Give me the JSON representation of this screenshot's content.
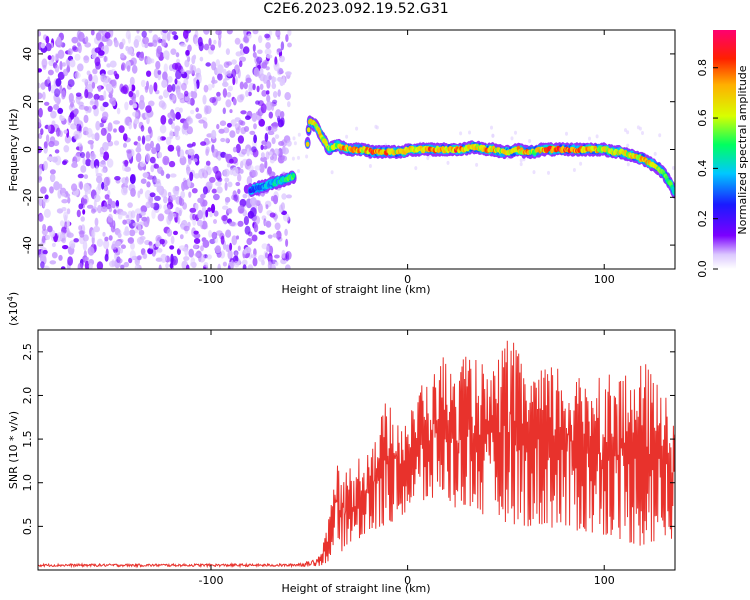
{
  "title": "C2E6.2023.092.19.52.G31",
  "colorbar": {
    "label": "Normalized spectral amplitude",
    "ticks": [
      "0.0",
      "0.2",
      "0.4",
      "0.6",
      "0.8"
    ],
    "tick_values": [
      0.0,
      0.2,
      0.4,
      0.6,
      0.8
    ],
    "colors": [
      "#ffffff",
      "#dcc8ff",
      "#7b00ff",
      "#1a1aff",
      "#00c8ff",
      "#00ff60",
      "#d8ff00",
      "#ffb000",
      "#ff2000",
      "#ff0070"
    ]
  },
  "chart_data": [
    {
      "type": "heatmap",
      "xlabel": "Height of straight line (km)",
      "ylabel": "Frequency (Hz)",
      "xlim": [
        -188,
        136
      ],
      "ylim": [
        -50,
        50
      ],
      "xticks": [
        "-100",
        "0",
        "100"
      ],
      "xtick_values": [
        -100,
        0,
        100
      ],
      "yticks": [
        "-40",
        "-20",
        "0",
        "20",
        "40"
      ],
      "ytick_values": [
        -40,
        -20,
        0,
        20,
        40
      ],
      "noise_region_x": [
        -188,
        -60
      ],
      "track": {
        "name": "dominant frequency ridge",
        "x": [
          -80,
          -76,
          -72,
          -68,
          -64,
          -60,
          -56,
          -52,
          -50,
          -48,
          -46,
          -44,
          -42,
          -40,
          -38,
          -36,
          -34,
          -32,
          -30,
          -26,
          -22,
          -18,
          -14,
          -10,
          -6,
          -2,
          0,
          4,
          8,
          12,
          16,
          20,
          24,
          28,
          32,
          36,
          40,
          44,
          48,
          52,
          56,
          60,
          64,
          68,
          72,
          76,
          80,
          84,
          88,
          92,
          96,
          100,
          104,
          108,
          112,
          116,
          120,
          124,
          128,
          132,
          136
        ],
        "y": [
          -17,
          -16,
          -15,
          -14,
          -13,
          -12,
          -11,
          -10,
          12,
          11,
          9,
          6,
          3,
          0,
          1,
          2,
          1,
          1,
          0,
          0,
          0,
          -1,
          -1,
          -1,
          -1,
          -1,
          0,
          0,
          0,
          0,
          0,
          0,
          0,
          0,
          1,
          1,
          0,
          0,
          -1,
          -1,
          0,
          -1,
          -1,
          0,
          0,
          0,
          0,
          0,
          0,
          0,
          0,
          0,
          -1,
          -1,
          -2,
          -3,
          -4,
          -6,
          -8,
          -12,
          -18
        ],
        "amplitude": [
          0.3,
          0.35,
          0.4,
          0.45,
          0.5,
          0.55,
          0.55,
          0.6,
          0.7,
          0.8,
          0.75,
          0.7,
          0.65,
          0.6,
          0.65,
          0.7,
          0.75,
          0.8,
          0.7,
          0.85,
          0.75,
          0.9,
          0.8,
          0.85,
          0.7,
          0.75,
          0.8,
          0.7,
          0.75,
          0.85,
          0.8,
          0.7,
          0.85,
          0.9,
          0.7,
          0.75,
          0.8,
          0.75,
          0.7,
          0.7,
          0.75,
          0.8,
          0.7,
          0.75,
          0.85,
          0.9,
          0.85,
          0.9,
          0.8,
          0.8,
          0.75,
          0.7,
          0.7,
          0.7,
          0.7,
          0.75,
          0.8,
          0.7,
          0.6,
          0.55,
          0.5
        ]
      }
    },
    {
      "type": "line",
      "xlabel": "Height of straight line (km)",
      "ylabel": "SNR (10 * v/v)",
      "y_scale_label": "(x10",
      "y_scale_exp": "4",
      "y_scale_close": ")",
      "xlim": [
        -188,
        136
      ],
      "ylim": [
        0,
        2.75
      ],
      "xticks": [
        "-100",
        "0",
        "100"
      ],
      "xtick_values": [
        -100,
        0,
        100
      ],
      "yticks": [
        "0.5",
        "1.0",
        "1.5",
        "2.0",
        "2.5"
      ],
      "ytick_values": [
        0.5,
        1.0,
        1.5,
        2.0,
        2.5
      ],
      "series": [
        {
          "name": "SNR",
          "color": "#e8322c",
          "envelope_x": [
            -188,
            -60,
            -50,
            -44,
            -40,
            -36,
            -34,
            -32,
            -30,
            -28,
            -26,
            -24,
            -22,
            -20,
            -16,
            -12,
            -8,
            -4,
            0,
            4,
            8,
            12,
            16,
            20,
            24,
            28,
            32,
            36,
            40,
            44,
            48,
            52,
            56,
            60,
            64,
            68,
            72,
            76,
            80,
            84,
            88,
            92,
            96,
            100,
            104,
            108,
            112,
            116,
            120,
            124,
            128,
            132,
            136
          ],
          "envelope_low": [
            0.04,
            0.04,
            0.04,
            0.05,
            0.1,
            0.2,
            0.2,
            0.25,
            0.3,
            0.35,
            0.3,
            0.35,
            0.4,
            0.4,
            0.45,
            0.5,
            0.55,
            0.6,
            0.65,
            0.7,
            0.75,
            0.8,
            0.85,
            0.8,
            0.7,
            0.75,
            0.7,
            0.65,
            0.6,
            0.6,
            0.55,
            0.55,
            0.5,
            0.5,
            0.5,
            0.5,
            0.5,
            0.45,
            0.45,
            0.45,
            0.45,
            0.4,
            0.4,
            0.4,
            0.4,
            0.35,
            0.3,
            0.3,
            0.25,
            0.3,
            0.3,
            0.35,
            0.35
          ],
          "envelope_high": [
            0.07,
            0.07,
            0.1,
            0.2,
            0.6,
            1.3,
            1.1,
            1.0,
            1.3,
            1.1,
            1.2,
            1.4,
            1.3,
            1.55,
            1.5,
            1.9,
            2.1,
            1.7,
            1.8,
            1.9,
            2.3,
            2.1,
            2.55,
            2.4,
            2.2,
            2.5,
            2.4,
            2.55,
            2.2,
            2.3,
            2.6,
            2.7,
            2.5,
            2.4,
            2.3,
            2.3,
            2.35,
            2.4,
            2.3,
            2.25,
            2.2,
            2.3,
            2.4,
            2.2,
            2.35,
            2.3,
            2.2,
            2.3,
            2.4,
            2.3,
            2.1,
            2.2,
            1.8
          ]
        }
      ]
    }
  ]
}
